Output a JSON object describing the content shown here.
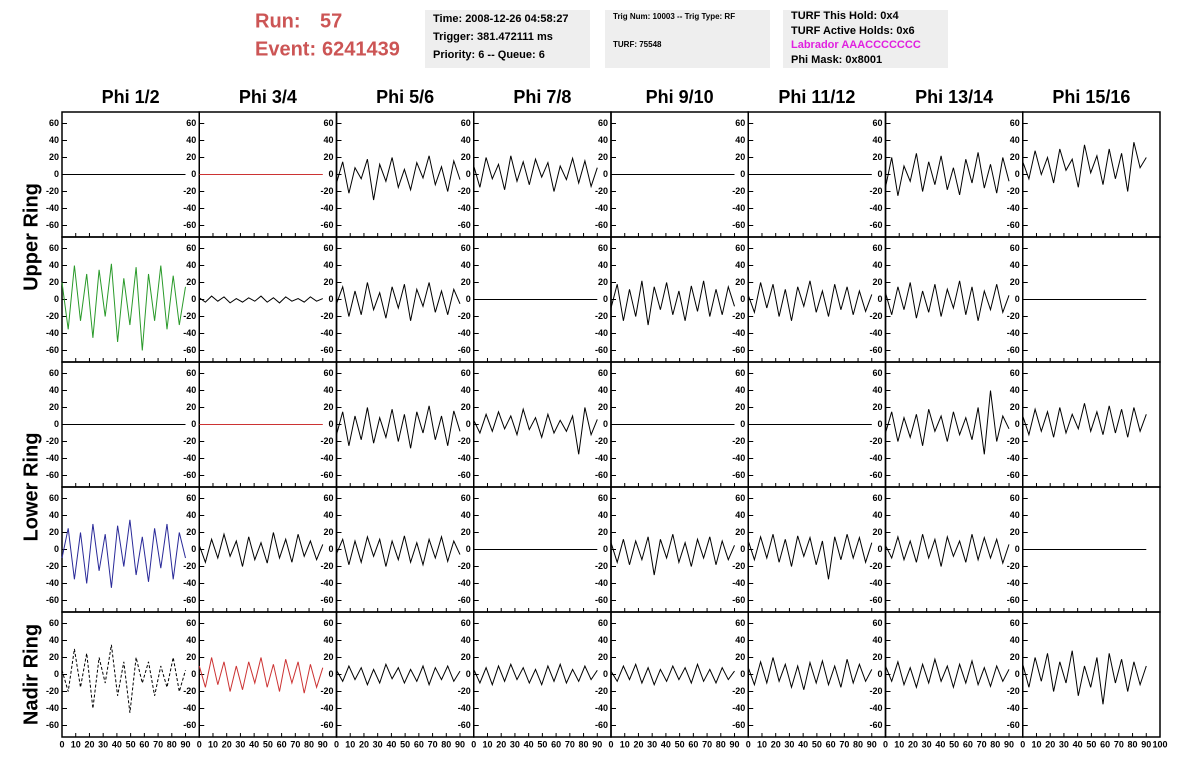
{
  "header": {
    "run_label": "Run:",
    "run": 57,
    "event_label": "Event:",
    "event": 6241439,
    "time": "Time: 2008-12-26 04:58:27",
    "trigger": "Trigger: 381.472111 ms",
    "priority": "Priority: 6 -- Queue: 6",
    "trig_num": "Trig Num: 10003 -- Trig Type: RF",
    "turf": "TURF: 75548",
    "turf_hold": "TURF This Hold: 0x4",
    "turf_active": "TURF Active Holds: 0x6",
    "labrador": "Labrador AAACCCCCCC",
    "phi_mask": "Phi Mask: 0x8001"
  },
  "chart_data": {
    "type": "line",
    "columns": [
      "Phi 1/2",
      "Phi 3/4",
      "Phi 5/6",
      "Phi 7/8",
      "Phi 9/10",
      "Phi 11/12",
      "Phi 13/14",
      "Phi 15/16"
    ],
    "row_labels": [
      "Upper Ring",
      "Lower Ring",
      "Nadir Ring"
    ],
    "xlim": [
      0,
      100
    ],
    "xticks": [
      0,
      10,
      20,
      30,
      40,
      50,
      60,
      70,
      80,
      90,
      100
    ],
    "ylim": [
      -70,
      70
    ],
    "yticks": [
      -60,
      -40,
      -20,
      0,
      20,
      40,
      60
    ],
    "x": [
      0,
      4.5,
      9,
      13.5,
      18,
      22.5,
      27,
      31.5,
      36,
      40.5,
      45,
      49.5,
      54,
      58.5,
      63,
      67.5,
      72,
      76.5,
      81,
      85.5,
      90
    ],
    "panels": [
      {
        "color": "#000000",
        "values": [
          0,
          0,
          0,
          0,
          0,
          0,
          0,
          0,
          0,
          0,
          0,
          0,
          0,
          0,
          0,
          0,
          0,
          0,
          0,
          0,
          0
        ]
      },
      {
        "color": "#cc3333",
        "values": [
          0,
          0,
          0,
          0,
          0,
          0,
          0,
          0,
          0,
          0,
          0,
          0,
          0,
          0,
          0,
          0,
          0,
          0,
          0,
          0,
          0
        ]
      },
      {
        "color": "#000000",
        "values": [
          -10,
          15,
          -22,
          8,
          -5,
          18,
          -30,
          12,
          -8,
          20,
          -15,
          6,
          -18,
          14,
          -4,
          22,
          -12,
          9,
          -20,
          16,
          -6
        ]
      },
      {
        "color": "#000000",
        "values": [
          10,
          -15,
          20,
          -5,
          12,
          -18,
          22,
          -8,
          15,
          -12,
          18,
          -3,
          14,
          -20,
          10,
          -6,
          19,
          -10,
          16,
          -14,
          8
        ]
      },
      {
        "color": "#000000",
        "values": [
          0,
          0,
          0,
          0,
          0,
          0,
          0,
          0,
          0,
          0,
          0,
          0,
          0,
          0,
          0,
          0,
          0,
          0,
          0,
          0,
          0
        ]
      },
      {
        "color": "#000000",
        "values": [
          0,
          0,
          0,
          0,
          0,
          0,
          0,
          0,
          0,
          0,
          0,
          0,
          0,
          0,
          0,
          0,
          0,
          0,
          0,
          0,
          0
        ]
      },
      {
        "color": "#000000",
        "values": [
          -15,
          20,
          -25,
          10,
          -8,
          25,
          -20,
          15,
          -12,
          22,
          -18,
          8,
          -24,
          18,
          -10,
          26,
          -16,
          12,
          -22,
          20,
          -8
        ]
      },
      {
        "color": "#000000",
        "values": [
          15,
          -5,
          28,
          0,
          20,
          -10,
          30,
          5,
          18,
          -15,
          35,
          2,
          22,
          -12,
          30,
          -5,
          25,
          -20,
          38,
          8,
          20
        ]
      },
      {
        "color": "#2a9a2a",
        "values": [
          20,
          -35,
          40,
          -25,
          30,
          -45,
          35,
          -20,
          42,
          -50,
          25,
          -30,
          38,
          -60,
          30,
          -25,
          40,
          -35,
          28,
          -30,
          15
        ]
      },
      {
        "color": "#000000",
        "values": [
          2,
          -3,
          4,
          -2,
          3,
          -4,
          1,
          -3,
          2,
          -2,
          4,
          -3,
          2,
          -4,
          3,
          -2,
          1,
          -3,
          3,
          -2,
          1
        ]
      },
      {
        "color": "#000000",
        "values": [
          -5,
          15,
          -20,
          10,
          -18,
          20,
          -12,
          8,
          -22,
          15,
          -10,
          18,
          -25,
          12,
          -8,
          20,
          -15,
          10,
          -18,
          12,
          -5
        ]
      },
      {
        "color": "#000000",
        "values": [
          0,
          0,
          0,
          0,
          0,
          0,
          0,
          0,
          0,
          0,
          0,
          0,
          0,
          0,
          0,
          0,
          0,
          0,
          0,
          0,
          0
        ]
      },
      {
        "color": "#000000",
        "values": [
          -10,
          18,
          -25,
          12,
          -20,
          22,
          -30,
          15,
          -12,
          20,
          -18,
          10,
          -25,
          16,
          -14,
          22,
          -20,
          12,
          -18,
          15,
          -8
        ]
      },
      {
        "color": "#000000",
        "values": [
          5,
          -15,
          20,
          -10,
          18,
          -20,
          12,
          -25,
          15,
          -8,
          22,
          -15,
          10,
          -20,
          18,
          -12,
          15,
          -18,
          10,
          -14,
          6
        ]
      },
      {
        "color": "#000000",
        "values": [
          8,
          -18,
          15,
          -12,
          20,
          -22,
          10,
          -15,
          18,
          -20,
          12,
          -10,
          22,
          -18,
          15,
          -25,
          10,
          -12,
          18,
          -15,
          5
        ]
      },
      {
        "color": "#000000",
        "values": [
          0,
          0,
          0,
          0,
          0,
          0,
          0,
          0,
          0,
          0,
          0,
          0,
          0,
          0,
          0,
          0,
          0,
          0,
          0,
          0,
          0
        ]
      },
      {
        "color": "#000000",
        "values": [
          0,
          0,
          0,
          0,
          0,
          0,
          0,
          0,
          0,
          0,
          0,
          0,
          0,
          0,
          0,
          0,
          0,
          0,
          0,
          0,
          0
        ]
      },
      {
        "color": "#cc3333",
        "values": [
          0,
          0,
          0,
          0,
          0,
          0,
          0,
          0,
          0,
          0,
          0,
          0,
          0,
          0,
          0,
          0,
          0,
          0,
          0,
          0,
          0
        ]
      },
      {
        "color": "#000000",
        "values": [
          -12,
          15,
          -25,
          10,
          -18,
          20,
          -22,
          8,
          -15,
          18,
          -20,
          12,
          -28,
          15,
          -10,
          22,
          -18,
          10,
          -25,
          16,
          -8
        ]
      },
      {
        "color": "#000000",
        "values": [
          5,
          -10,
          12,
          -8,
          15,
          -5,
          10,
          -12,
          18,
          -6,
          8,
          -15,
          12,
          -10,
          5,
          -8,
          10,
          -35,
          20,
          -12,
          6
        ]
      },
      {
        "color": "#000000",
        "values": [
          0,
          0,
          0,
          0,
          0,
          0,
          0,
          0,
          0,
          0,
          0,
          0,
          0,
          0,
          0,
          0,
          0,
          0,
          0,
          0,
          0
        ]
      },
      {
        "color": "#000000",
        "values": [
          0,
          0,
          0,
          0,
          0,
          0,
          0,
          0,
          0,
          0,
          0,
          0,
          0,
          0,
          0,
          0,
          0,
          0,
          0,
          0,
          0
        ]
      },
      {
        "color": "#000000",
        "values": [
          -10,
          15,
          -20,
          8,
          -15,
          12,
          -25,
          18,
          -8,
          10,
          -20,
          15,
          -12,
          8,
          -18,
          20,
          -35,
          40,
          -20,
          10,
          -5
        ]
      },
      {
        "color": "#000000",
        "values": [
          10,
          -12,
          18,
          -8,
          15,
          -15,
          20,
          -10,
          12,
          -5,
          25,
          -8,
          15,
          -12,
          22,
          -10,
          18,
          -15,
          20,
          -8,
          12
        ]
      },
      {
        "color": "#2a2a99",
        "values": [
          -10,
          25,
          -35,
          20,
          -40,
          30,
          -25,
          18,
          -45,
          28,
          -20,
          35,
          -30,
          15,
          -38,
          25,
          -22,
          30,
          -35,
          20,
          -10
        ]
      },
      {
        "color": "#000000",
        "values": [
          5,
          -15,
          12,
          -10,
          18,
          -8,
          10,
          -20,
          15,
          -12,
          8,
          -16,
          20,
          -10,
          12,
          -15,
          18,
          -8,
          10,
          -12,
          6
        ]
      },
      {
        "color": "#000000",
        "values": [
          -5,
          12,
          -18,
          10,
          -15,
          15,
          -8,
          12,
          -20,
          10,
          -12,
          16,
          -15,
          8,
          -18,
          12,
          -10,
          15,
          -14,
          10,
          -6
        ]
      },
      {
        "color": "#000000",
        "values": [
          0,
          0,
          0,
          0,
          0,
          0,
          0,
          0,
          0,
          0,
          0,
          0,
          0,
          0,
          0,
          0,
          0,
          0,
          0,
          0,
          0
        ]
      },
      {
        "color": "#000000",
        "values": [
          8,
          -15,
          12,
          -18,
          10,
          -12,
          15,
          -30,
          12,
          -10,
          18,
          -15,
          8,
          -20,
          12,
          -10,
          15,
          -18,
          10,
          -12,
          5
        ]
      },
      {
        "color": "#000000",
        "values": [
          10,
          -12,
          15,
          -10,
          18,
          -15,
          12,
          -20,
          16,
          -8,
          14,
          -18,
          10,
          -35,
          15,
          -12,
          18,
          -10,
          14,
          -15,
          8
        ]
      },
      {
        "color": "#000000",
        "values": [
          5,
          -10,
          15,
          -12,
          10,
          -15,
          18,
          -10,
          12,
          -20,
          15,
          -8,
          10,
          -15,
          18,
          -12,
          14,
          -10,
          12,
          -16,
          6
        ]
      },
      {
        "color": "#000000",
        "values": [
          0,
          0,
          0,
          0,
          0,
          0,
          0,
          0,
          0,
          0,
          0,
          0,
          0,
          0,
          0,
          0,
          0,
          0,
          0,
          0,
          0
        ]
      },
      {
        "color": "#000000",
        "dashed": true,
        "values": [
          5,
          -20,
          30,
          -15,
          25,
          -40,
          20,
          -10,
          35,
          -25,
          15,
          -45,
          20,
          -10,
          15,
          -25,
          10,
          -15,
          20,
          -20,
          5
        ]
      },
      {
        "color": "#cc3333",
        "values": [
          10,
          -15,
          20,
          -12,
          15,
          -20,
          10,
          -18,
          15,
          -10,
          20,
          -15,
          12,
          -20,
          18,
          -10,
          15,
          -22,
          12,
          -15,
          8
        ]
      },
      {
        "color": "#000000",
        "values": [
          5,
          -8,
          10,
          -6,
          8,
          -12,
          6,
          -10,
          12,
          -5,
          8,
          -10,
          6,
          -8,
          10,
          -12,
          8,
          -6,
          10,
          -8,
          4
        ]
      },
      {
        "color": "#000000",
        "values": [
          6,
          -10,
          8,
          -12,
          10,
          -8,
          12,
          -6,
          8,
          -10,
          6,
          -12,
          10,
          -8,
          12,
          -10,
          6,
          -8,
          10,
          -6,
          5
        ]
      },
      {
        "color": "#000000",
        "values": [
          4,
          -8,
          10,
          -6,
          12,
          -10,
          8,
          -12,
          6,
          -8,
          10,
          -6,
          8,
          -10,
          12,
          -8,
          6,
          -10,
          8,
          -6,
          4
        ]
      },
      {
        "color": "#000000",
        "values": [
          8,
          -12,
          15,
          -10,
          20,
          -8,
          12,
          -15,
          10,
          -18,
          14,
          -10,
          16,
          -12,
          10,
          -15,
          18,
          -10,
          12,
          -8,
          6
        ]
      },
      {
        "color": "#000000",
        "values": [
          10,
          -8,
          15,
          -12,
          8,
          -15,
          12,
          -10,
          18,
          -8,
          10,
          -15,
          12,
          -10,
          16,
          -12,
          8,
          -14,
          10,
          -8,
          6
        ]
      },
      {
        "color": "#000000",
        "values": [
          12,
          -15,
          20,
          -8,
          25,
          -20,
          15,
          -10,
          28,
          -25,
          10,
          -15,
          20,
          -35,
          25,
          -10,
          18,
          -20,
          15,
          -12,
          10
        ]
      }
    ]
  }
}
